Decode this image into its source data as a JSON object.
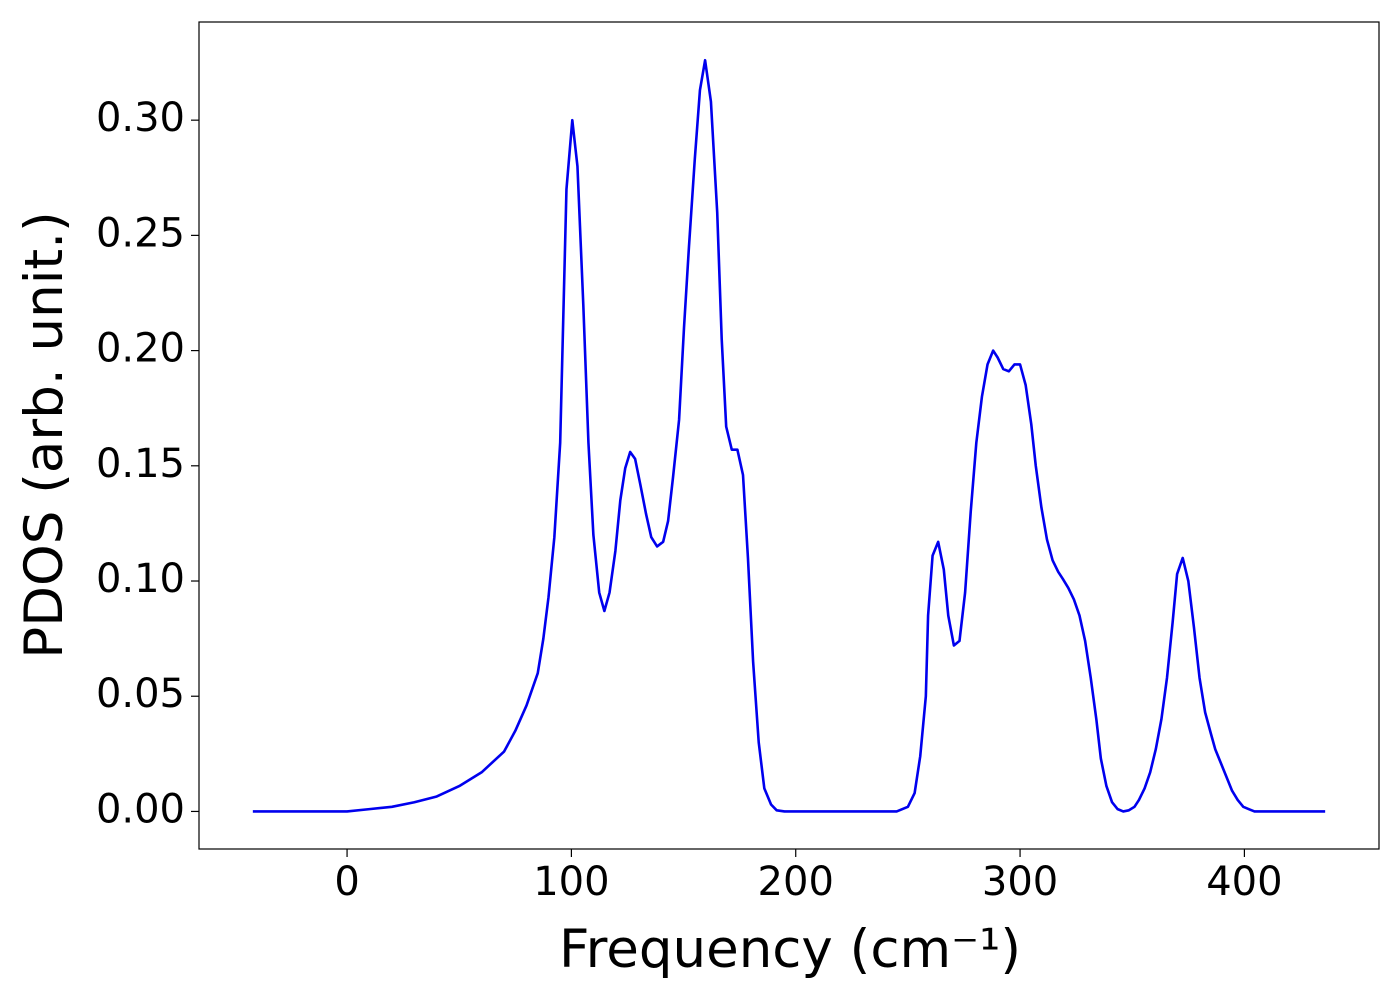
{
  "chart_data": {
    "type": "line",
    "xlabel": "Frequency (cm⁻¹)",
    "ylabel": "PDOS (arb. unit.)",
    "x": [
      -42,
      -20,
      0,
      10,
      20,
      30,
      40,
      50,
      60,
      70,
      75,
      80,
      85,
      87.5,
      89.8,
      92.4,
      95,
      97.8,
      100.4,
      102.7,
      105.3,
      107.6,
      109.8,
      112.4,
      114.7,
      117,
      119.6,
      121.8,
      124,
      126.2,
      128.4,
      130.7,
      133.3,
      135.6,
      138.2,
      140.9,
      143.1,
      145.3,
      148,
      150.2,
      152.4,
      155,
      157.3,
      159.6,
      162.2,
      165,
      167,
      169,
      171.5,
      174,
      176.5,
      178.7,
      181,
      183.5,
      186,
      189,
      191.5,
      195,
      220,
      245,
      250,
      253,
      255.5,
      258,
      259,
      261,
      263.5,
      266,
      268,
      270.5,
      273,
      275.5,
      278,
      280.5,
      283,
      285.5,
      288,
      290,
      292.5,
      295,
      297.5,
      300,
      302.5,
      305,
      307,
      309.5,
      312,
      314.5,
      317,
      319,
      321.5,
      324,
      326.5,
      329,
      331.5,
      334,
      336,
      338.5,
      341,
      343.5,
      346,
      348.5,
      351,
      353,
      355.5,
      358,
      360.5,
      363,
      365.5,
      368,
      370,
      372.5,
      375,
      377.5,
      380,
      382.5,
      385,
      387,
      389.5,
      392,
      394.5,
      397,
      399.5,
      402,
      404.5,
      420,
      436
    ],
    "series": [
      {
        "color": "#0000ee",
        "values": [
          0,
          0,
          0,
          0.001,
          0.002,
          0.004,
          0.0065,
          0.011,
          0.017,
          0.026,
          0.035,
          0.046,
          0.06,
          0.075,
          0.093,
          0.119,
          0.16,
          0.27,
          0.3,
          0.28,
          0.22,
          0.16,
          0.12,
          0.095,
          0.087,
          0.095,
          0.113,
          0.135,
          0.149,
          0.156,
          0.153,
          0.142,
          0.129,
          0.119,
          0.115,
          0.117,
          0.126,
          0.145,
          0.17,
          0.21,
          0.245,
          0.283,
          0.313,
          0.326,
          0.308,
          0.26,
          0.205,
          0.167,
          0.157,
          0.157,
          0.146,
          0.11,
          0.065,
          0.03,
          0.01,
          0.003,
          0.0005,
          0,
          0,
          0,
          0.002,
          0.008,
          0.024,
          0.05,
          0.085,
          0.111,
          0.117,
          0.105,
          0.085,
          0.072,
          0.074,
          0.095,
          0.13,
          0.16,
          0.18,
          0.194,
          0.2,
          0.197,
          0.192,
          0.191,
          0.194,
          0.194,
          0.185,
          0.168,
          0.15,
          0.132,
          0.118,
          0.109,
          0.104,
          0.101,
          0.097,
          0.092,
          0.085,
          0.074,
          0.058,
          0.04,
          0.023,
          0.011,
          0.004,
          0.001,
          0,
          0.0005,
          0.002,
          0.005,
          0.01,
          0.017,
          0.027,
          0.04,
          0.058,
          0.082,
          0.103,
          0.11,
          0.1,
          0.08,
          0.058,
          0.043,
          0.034,
          0.027,
          0.021,
          0.015,
          0.009,
          0.005,
          0.002,
          0.001,
          0,
          0,
          0
        ]
      }
    ],
    "xlim": [
      -66,
      460
    ],
    "ylim": [
      -0.0163,
      0.3426
    ],
    "xticks": [
      0,
      100,
      200,
      300,
      400
    ],
    "yticks": [
      {
        "value": 0,
        "label": "0.00"
      },
      {
        "value": 0.05,
        "label": "0.05"
      },
      {
        "value": 0.1,
        "label": "0.10"
      },
      {
        "value": 0.15,
        "label": "0.15"
      },
      {
        "value": 0.2,
        "label": "0.20"
      },
      {
        "value": 0.25,
        "label": "0.25"
      },
      {
        "value": 0.3,
        "label": "0.30"
      }
    ],
    "grid": false
  }
}
